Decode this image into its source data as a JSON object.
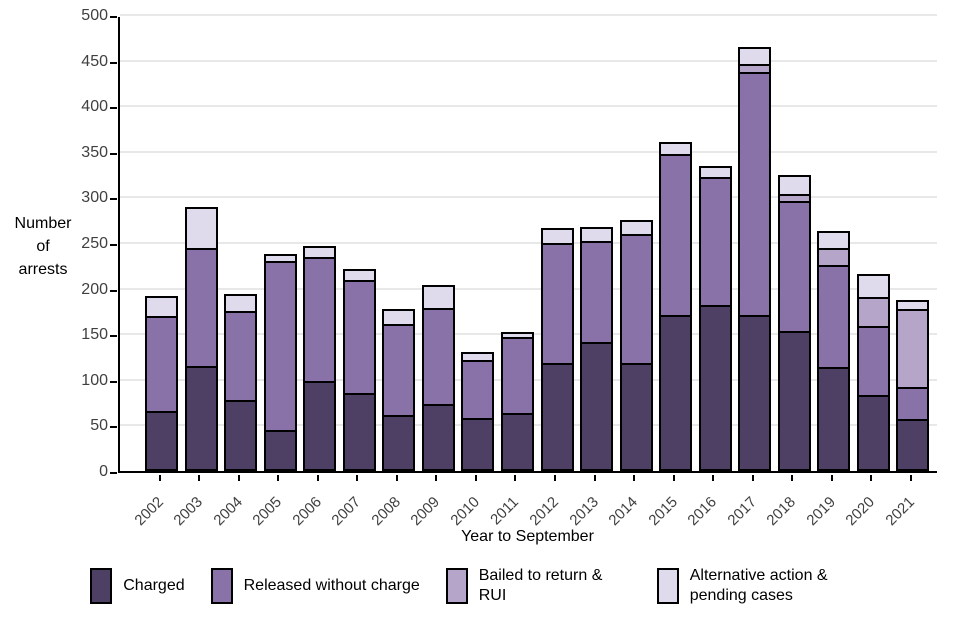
{
  "chart_data": {
    "type": "bar",
    "stacked": true,
    "title": "",
    "xlabel": "Year to September",
    "ylabel": "Number of arrests",
    "ylabel_lines": [
      "Number",
      "of",
      "arrests"
    ],
    "categories": [
      "2002",
      "2003",
      "2004",
      "2005",
      "2006",
      "2007",
      "2008",
      "2009",
      "2010",
      "2011",
      "2012",
      "2013",
      "2014",
      "2015",
      "2016",
      "2017",
      "2018",
      "2019",
      "2020",
      "2021"
    ],
    "series": [
      {
        "name": "Charged",
        "color": "#4e4064",
        "values": [
          66,
          115,
          78,
          45,
          99,
          86,
          61,
          73,
          58,
          64,
          118,
          141,
          118,
          171,
          182,
          171,
          153,
          114,
          83,
          57
        ]
      },
      {
        "name": "Released without charge",
        "color": "#8872a8",
        "values": [
          104,
          130,
          97,
          185,
          136,
          123,
          100,
          106,
          64,
          83,
          132,
          111,
          142,
          177,
          140,
          266,
          143,
          112,
          76,
          35
        ]
      },
      {
        "name": "Bailed to return & RUI",
        "color": "#b4a5c9",
        "values": [
          0,
          0,
          0,
          0,
          0,
          0,
          0,
          0,
          0,
          0,
          0,
          0,
          0,
          0,
          0,
          9,
          8,
          19,
          32,
          86
        ]
      },
      {
        "name": "Alternative action & pending cases",
        "color": "#e0dbec",
        "values": [
          22,
          45,
          19,
          8,
          12,
          13,
          17,
          25,
          9,
          5,
          16,
          16,
          15,
          13,
          12,
          19,
          21,
          18,
          25,
          10
        ]
      }
    ],
    "totals": [
      192,
      290,
      194,
      238,
      247,
      222,
      178,
      204,
      131,
      152,
      266,
      268,
      275,
      361,
      334,
      465,
      325,
      263,
      216,
      188
    ],
    "ylim": [
      0,
      500
    ],
    "ytick_step": 50,
    "grid": true,
    "gridline_color": "#e8e8e8",
    "axis_color": "#000000",
    "tick_label_color": "#404040",
    "legend_position": "bottom"
  }
}
